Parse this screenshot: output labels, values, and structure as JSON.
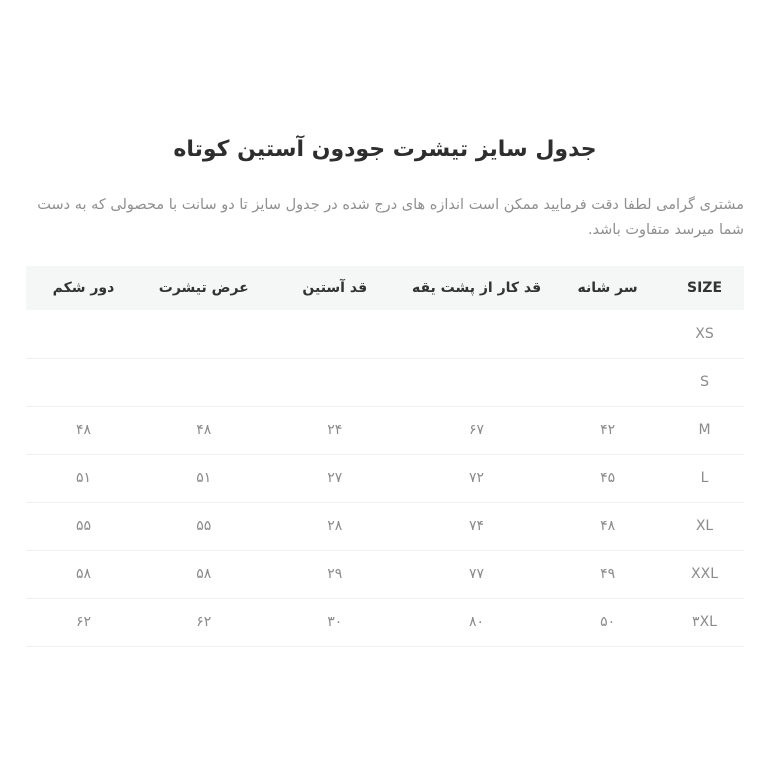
{
  "page": {
    "title": "جدول سایز تیشرت جودون آستین کوتاه",
    "description": "مشتری گرامی لطفا دقت فرمایید ممکن است اندازه های درج شده در جدول سایز تا دو سانت با محصولی که به دست شما میرسد متفاوت باشد."
  },
  "colors": {
    "title_text": "#2e2e2e",
    "description_text": "#8f8f8f",
    "header_bg": "#f5f6f6",
    "header_text": "#333333",
    "cell_text": "#8b8b8b",
    "row_border": "#efefef",
    "background": "#ffffff"
  },
  "table": {
    "columns": [
      {
        "key": "size",
        "label": "SIZE"
      },
      {
        "key": "shoulder",
        "label": "سر شانه"
      },
      {
        "key": "back_length",
        "label": "قد کار از پشت یقه"
      },
      {
        "key": "sleeve_length",
        "label": "قد آستین"
      },
      {
        "key": "shirt_width",
        "label": "عرض تیشرت"
      },
      {
        "key": "belly_round",
        "label": "دور شکم"
      }
    ],
    "rows": [
      {
        "size": "XS",
        "shoulder": "",
        "back_length": "",
        "sleeve_length": "",
        "shirt_width": "",
        "belly_round": ""
      },
      {
        "size": "S",
        "shoulder": "",
        "back_length": "",
        "sleeve_length": "",
        "shirt_width": "",
        "belly_round": ""
      },
      {
        "size": "M",
        "shoulder": "۴۲",
        "back_length": "۶۷",
        "sleeve_length": "۲۴",
        "shirt_width": "۴۸",
        "belly_round": "۴۸"
      },
      {
        "size": "L",
        "shoulder": "۴۵",
        "back_length": "۷۲",
        "sleeve_length": "۲۷",
        "shirt_width": "۵۱",
        "belly_round": "۵۱"
      },
      {
        "size": "XL",
        "shoulder": "۴۸",
        "back_length": "۷۴",
        "sleeve_length": "۲۸",
        "shirt_width": "۵۵",
        "belly_round": "۵۵"
      },
      {
        "size": "XXL",
        "shoulder": "۴۹",
        "back_length": "۷۷",
        "sleeve_length": "۲۹",
        "shirt_width": "۵۸",
        "belly_round": "۵۸"
      },
      {
        "size": "۳XL",
        "shoulder": "۵۰",
        "back_length": "۸۰",
        "sleeve_length": "۳۰",
        "shirt_width": "۶۲",
        "belly_round": "۶۲"
      }
    ]
  }
}
